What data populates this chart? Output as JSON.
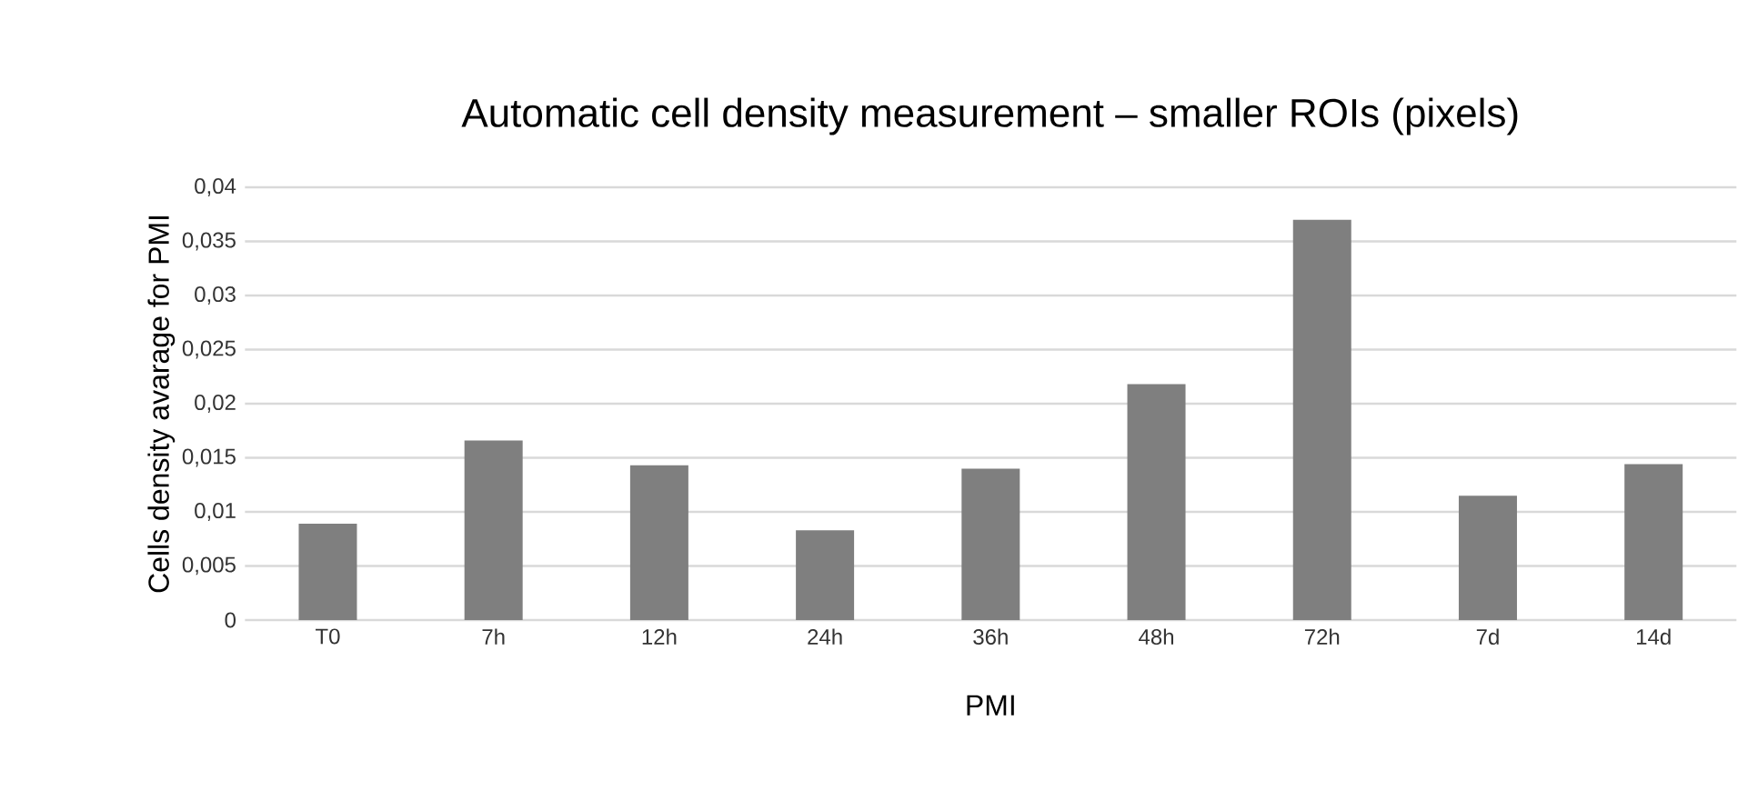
{
  "chart_data": {
    "type": "bar",
    "title": "Automatic cell density measurement – smaller ROIs (pixels)",
    "xlabel": "PMI",
    "ylabel": "Cells density avarage for PMI",
    "categories": [
      "T0",
      "7h",
      "12h",
      "24h",
      "36h",
      "48h",
      "72h",
      "7d",
      "14d"
    ],
    "values": [
      0.0089,
      0.0166,
      0.0143,
      0.0083,
      0.014,
      0.0218,
      0.037,
      0.0115,
      0.0144
    ],
    "color": "#7f7f7f",
    "ylim": [
      0,
      0.04
    ],
    "yticks": [
      {
        "value": 0,
        "label": "0"
      },
      {
        "value": 0.005,
        "label": "0,005"
      },
      {
        "value": 0.01,
        "label": "0,01"
      },
      {
        "value": 0.015,
        "label": "0,015"
      },
      {
        "value": 0.02,
        "label": "0,02"
      },
      {
        "value": 0.025,
        "label": "0,025"
      },
      {
        "value": 0.03,
        "label": "0,03"
      },
      {
        "value": 0.035,
        "label": "0,035"
      },
      {
        "value": 0.04,
        "label": "0,04"
      }
    ],
    "grid": "y"
  }
}
